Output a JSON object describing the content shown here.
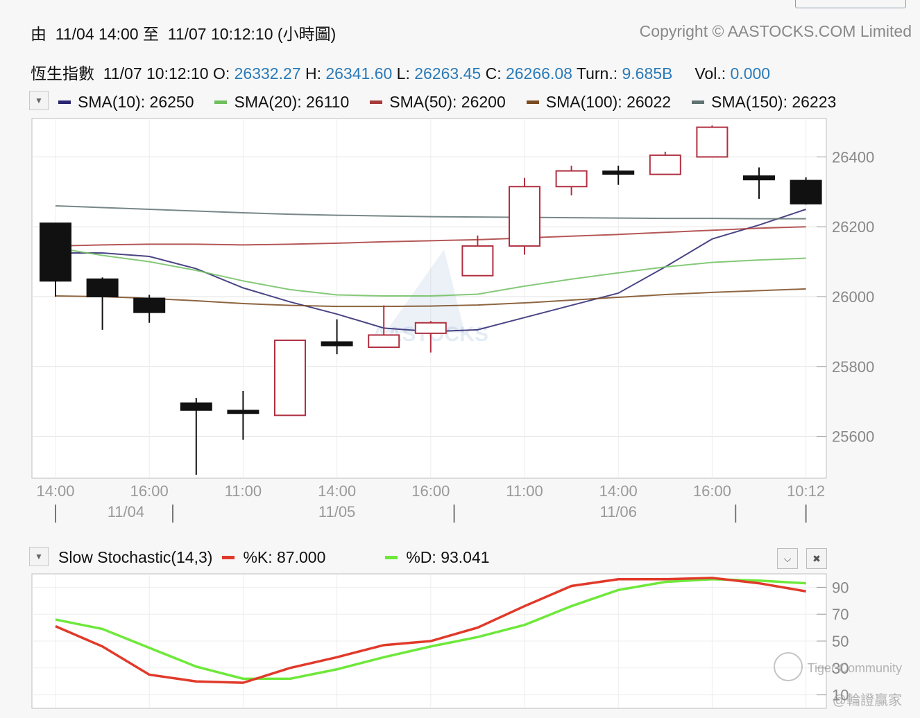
{
  "header": {
    "range_text": "由  11/04 14:00 至  11/07 10:12:10 (小時圖)",
    "copyright": "Copyright © AASTOCKS.COM Limited"
  },
  "info": {
    "name_time": "恆生指數  11/07 10:12:10 ",
    "o_label": "O: ",
    "o_value": "26332.27",
    "h_label": " H: ",
    "h_value": "26341.60",
    "l_label": " L: ",
    "l_value": "26263.45",
    "c_label": " C: ",
    "c_value": "26266.08",
    "turn_label": " Turn.: ",
    "turn_value": "9.685B",
    "vol_label": "     Vol.: ",
    "vol_value": "0.000"
  },
  "overlays": [
    {
      "label": "SMA(10): 26250",
      "color": "#2a2570"
    },
    {
      "label": "SMA(20): 26110",
      "color": "#6fbf5f"
    },
    {
      "label": "SMA(50): 26200",
      "color": "#a83a3a"
    },
    {
      "label": "SMA(100): 26022",
      "color": "#7a4a20"
    },
    {
      "label": "SMA(150): 26223",
      "color": "#5f7272"
    }
  ],
  "stochastic": {
    "name": "Slow Stochastic(14,3)",
    "k_label": "%K: 87.000",
    "k_color": "#e03a2a",
    "d_label": "%D: 93.041",
    "d_color": "#6ee83a"
  },
  "watermark": {
    "chart": "AASTOCKS",
    "community": "Tiger Community",
    "handle": "@輪證贏家"
  },
  "chart_data": [
    {
      "type": "candlestick",
      "y_ticks": [
        25600,
        25800,
        26000,
        26200,
        26400
      ],
      "ylim": [
        25480,
        26510
      ],
      "x_tick_labels": [
        "14:00",
        "16:00",
        "11:00",
        "14:00",
        "16:00",
        "11:00",
        "14:00",
        "16:00",
        "10:12"
      ],
      "x_tick_index": [
        0,
        2,
        4,
        6,
        8,
        10,
        12,
        14,
        16
      ],
      "date_labels": [
        {
          "label": "11/04",
          "index": 1.5
        },
        {
          "label": "11/05",
          "index": 6
        },
        {
          "label": "11/06",
          "index": 12
        }
      ],
      "day_separators": [
        3,
        9,
        15
      ],
      "candles": [
        {
          "o": 26210,
          "h": 26210,
          "l": 26000,
          "c": 26045
        },
        {
          "o": 26050,
          "h": 26055,
          "l": 25905,
          "c": 26000
        },
        {
          "o": 25995,
          "h": 26005,
          "l": 25925,
          "c": 25955
        },
        {
          "o": 25695,
          "h": 25710,
          "l": 25490,
          "c": 25675
        },
        {
          "o": 25670,
          "h": 25730,
          "l": 25590,
          "c": 25665
        },
        {
          "o": 25660,
          "h": 25875,
          "l": 25660,
          "c": 25875
        },
        {
          "o": 25870,
          "h": 25935,
          "l": 25835,
          "c": 25860
        },
        {
          "o": 25855,
          "h": 25975,
          "l": 25855,
          "c": 25890
        },
        {
          "o": 25895,
          "h": 25930,
          "l": 25840,
          "c": 25925
        },
        {
          "o": 26060,
          "h": 26175,
          "l": 26060,
          "c": 26145
        },
        {
          "o": 26145,
          "h": 26340,
          "l": 26120,
          "c": 26315
        },
        {
          "o": 26315,
          "h": 26375,
          "l": 26290,
          "c": 26360
        },
        {
          "o": 26355,
          "h": 26375,
          "l": 26320,
          "c": 26350
        },
        {
          "o": 26350,
          "h": 26415,
          "l": 26350,
          "c": 26405
        },
        {
          "o": 26400,
          "h": 26490,
          "l": 26400,
          "c": 26485
        },
        {
          "o": 26345,
          "h": 26370,
          "l": 26280,
          "c": 26335
        },
        {
          "o": 26332.27,
          "h": 26341.6,
          "l": 26263.45,
          "c": 26266.08
        }
      ],
      "sma": {
        "SMA(10)": [
          26125,
          26125,
          26115,
          26080,
          26025,
          25985,
          25950,
          25910,
          25900,
          25905,
          25940,
          25975,
          26010,
          26085,
          26165,
          26205,
          26250
        ],
        "SMA(20)": [
          26140,
          26118,
          26100,
          26075,
          26045,
          26020,
          26005,
          26002,
          26002,
          26007,
          26030,
          26050,
          26068,
          26085,
          26098,
          26105,
          26110
        ],
        "SMA(50)": [
          26145,
          26148,
          26150,
          26150,
          26148,
          26150,
          26153,
          26157,
          26160,
          26163,
          26168,
          26173,
          26178,
          26184,
          26190,
          26196,
          26200
        ],
        "SMA(100)": [
          26002,
          26000,
          25995,
          25988,
          25980,
          25975,
          25972,
          25972,
          25973,
          25976,
          25982,
          25990,
          25998,
          26006,
          26012,
          26017,
          26022
        ],
        "SMA(150)": [
          26260,
          26255,
          26250,
          26245,
          26240,
          26236,
          26233,
          26231,
          26229,
          26228,
          26227,
          26226,
          26225,
          26224,
          26224,
          26223,
          26223
        ]
      }
    },
    {
      "type": "line",
      "title": "Slow Stochastic(14,3)",
      "y_ticks": [
        10,
        30,
        50,
        70,
        90
      ],
      "ylim": [
        0,
        100
      ],
      "series": [
        {
          "name": "%K",
          "values": [
            61,
            46,
            25,
            20,
            19,
            30,
            38,
            47,
            50,
            60,
            76,
            91,
            96,
            96,
            97,
            93,
            87
          ]
        },
        {
          "name": "%D",
          "values": [
            66,
            59,
            45,
            31,
            22,
            22,
            29,
            38,
            46,
            53,
            62,
            76,
            88,
            94,
            96,
            95,
            93
          ]
        }
      ]
    }
  ]
}
